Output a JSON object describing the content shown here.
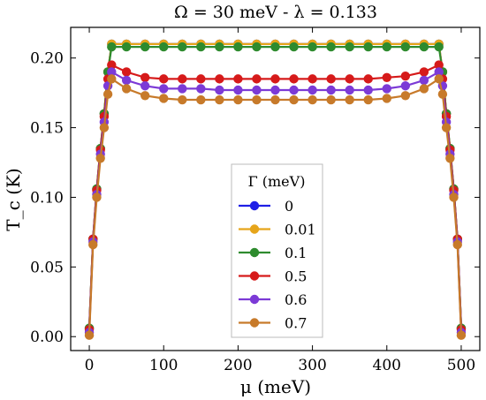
{
  "chart_data": {
    "type": "line",
    "title": "Ω = 30 meV - λ = 0.133",
    "xlabel": "μ (meV)",
    "ylabel": "T_c (K)",
    "xlim": [
      -25,
      525
    ],
    "ylim": [
      -0.01,
      0.222
    ],
    "xticks": [
      0,
      100,
      200,
      300,
      400,
      500
    ],
    "xtick_labels": [
      "0",
      "100",
      "200",
      "300",
      "400",
      "500"
    ],
    "yticks": [
      0.0,
      0.05,
      0.1,
      0.15,
      0.2
    ],
    "ytick_labels": [
      "0.00",
      "0.05",
      "0.10",
      "0.15",
      "0.20"
    ],
    "grid": false,
    "legend": {
      "title": "Γ (meV)",
      "placement": "center"
    },
    "x": [
      0,
      5,
      10,
      15,
      20,
      25,
      30,
      50,
      75,
      100,
      125,
      150,
      175,
      200,
      225,
      250,
      275,
      300,
      325,
      350,
      375,
      400,
      425,
      450,
      470,
      475,
      480,
      485,
      490,
      495,
      500
    ],
    "series": [
      {
        "name": "0",
        "color": "#1f1fe6",
        "values": [
          0.006,
          0.07,
          0.106,
          0.135,
          0.16,
          0.19,
          0.21,
          0.21,
          0.21,
          0.21,
          0.21,
          0.21,
          0.21,
          0.21,
          0.21,
          0.21,
          0.21,
          0.21,
          0.21,
          0.21,
          0.21,
          0.21,
          0.21,
          0.21,
          0.21,
          0.19,
          0.16,
          0.135,
          0.106,
          0.07,
          0.006
        ]
      },
      {
        "name": "0.01",
        "color": "#e6a51a",
        "values": [
          0.006,
          0.07,
          0.106,
          0.135,
          0.16,
          0.19,
          0.21,
          0.21,
          0.21,
          0.21,
          0.21,
          0.21,
          0.21,
          0.21,
          0.21,
          0.21,
          0.21,
          0.21,
          0.21,
          0.21,
          0.21,
          0.21,
          0.21,
          0.21,
          0.21,
          0.19,
          0.16,
          0.135,
          0.106,
          0.07,
          0.006
        ]
      },
      {
        "name": "0.1",
        "color": "#2e8b2e",
        "values": [
          0.006,
          0.07,
          0.106,
          0.135,
          0.16,
          0.19,
          0.208,
          0.208,
          0.208,
          0.208,
          0.208,
          0.208,
          0.208,
          0.208,
          0.208,
          0.208,
          0.208,
          0.208,
          0.208,
          0.208,
          0.208,
          0.208,
          0.208,
          0.208,
          0.208,
          0.19,
          0.16,
          0.135,
          0.106,
          0.07,
          0.006
        ]
      },
      {
        "name": "0.5",
        "color": "#d61a1a",
        "values": [
          0.005,
          0.07,
          0.105,
          0.134,
          0.158,
          0.185,
          0.195,
          0.19,
          0.186,
          0.185,
          0.185,
          0.185,
          0.185,
          0.185,
          0.185,
          0.185,
          0.185,
          0.185,
          0.185,
          0.185,
          0.185,
          0.186,
          0.187,
          0.19,
          0.195,
          0.185,
          0.158,
          0.134,
          0.105,
          0.07,
          0.005
        ]
      },
      {
        "name": "0.6",
        "color": "#7c3ad6",
        "values": [
          0.003,
          0.068,
          0.102,
          0.131,
          0.154,
          0.18,
          0.19,
          0.184,
          0.18,
          0.178,
          0.178,
          0.178,
          0.177,
          0.177,
          0.177,
          0.177,
          0.177,
          0.177,
          0.177,
          0.177,
          0.177,
          0.178,
          0.18,
          0.184,
          0.19,
          0.18,
          0.154,
          0.131,
          0.102,
          0.068,
          0.003
        ]
      },
      {
        "name": "0.7",
        "color": "#c77a2a",
        "values": [
          0.001,
          0.066,
          0.1,
          0.128,
          0.15,
          0.174,
          0.185,
          0.178,
          0.173,
          0.171,
          0.17,
          0.17,
          0.17,
          0.17,
          0.17,
          0.17,
          0.17,
          0.17,
          0.17,
          0.17,
          0.17,
          0.171,
          0.173,
          0.178,
          0.185,
          0.174,
          0.15,
          0.128,
          0.1,
          0.066,
          0.001
        ]
      }
    ]
  }
}
